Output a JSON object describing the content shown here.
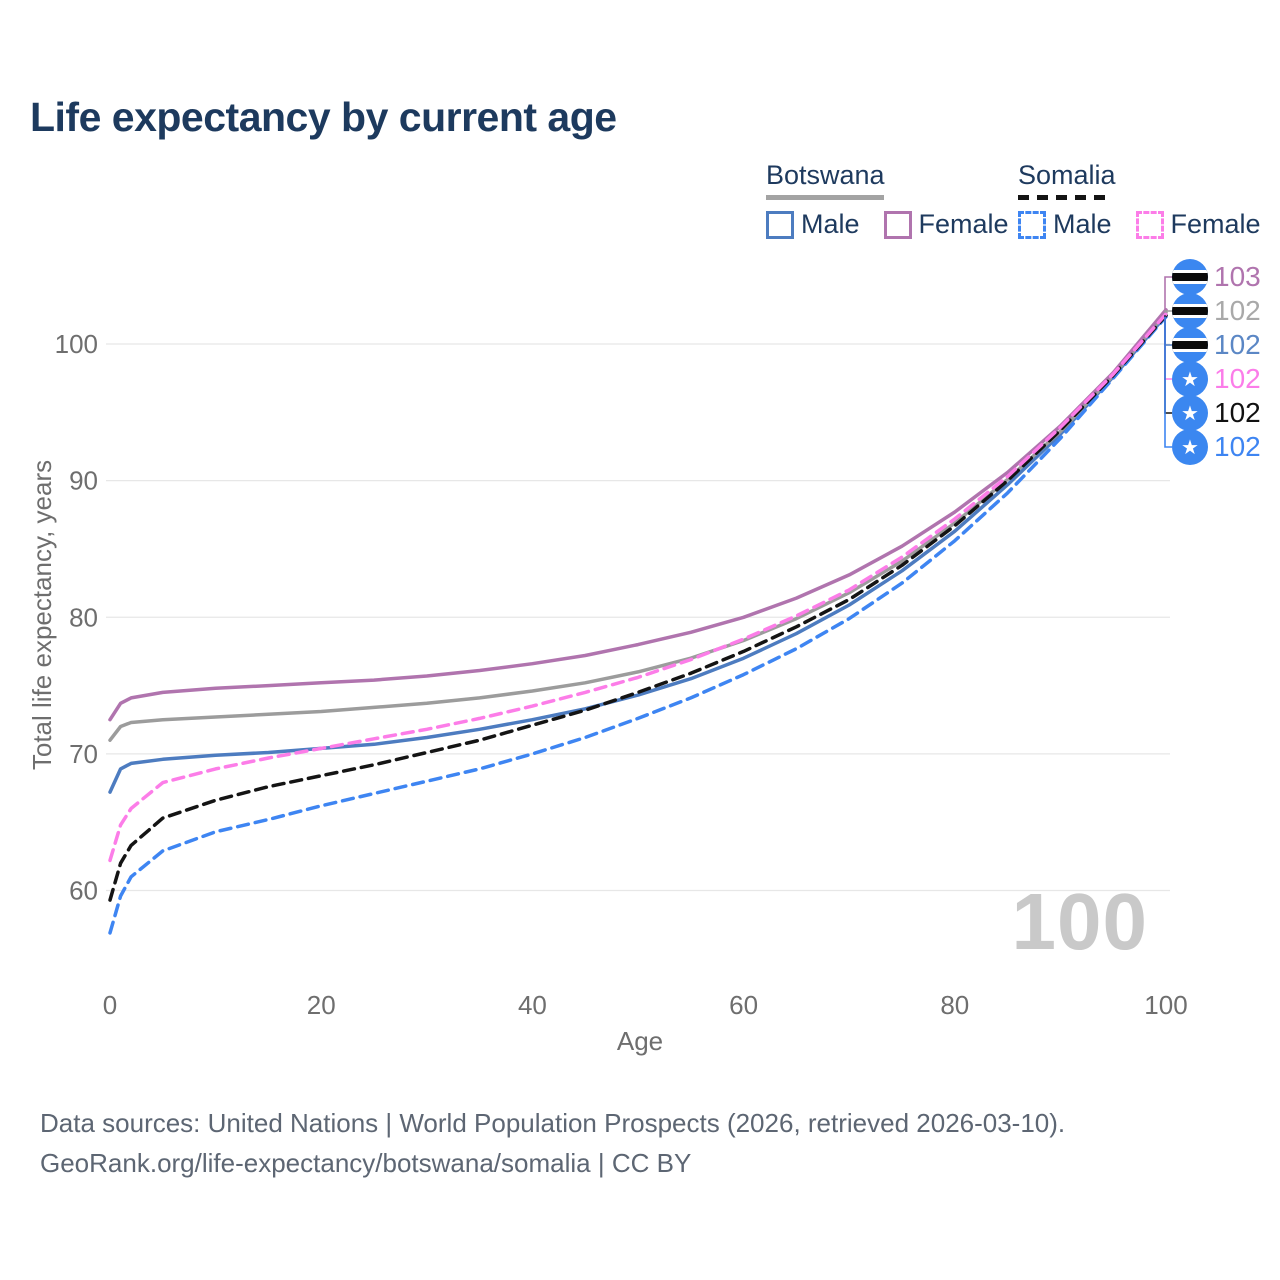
{
  "header": {
    "title": "Life expectancy by current age"
  },
  "legend": {
    "groups": [
      {
        "country": "Botswana",
        "line_style": "solid",
        "line_color": "#a3a3a3",
        "items": [
          {
            "label": "Male",
            "color": "#4d7cc0"
          },
          {
            "label": "Female",
            "color": "#b074ae"
          }
        ]
      },
      {
        "country": "Somalia",
        "line_style": "dashed",
        "line_color": "#141414",
        "items": [
          {
            "label": "Male",
            "color": "#3e85f2"
          },
          {
            "label": "Female",
            "color": "#fc7de8"
          }
        ]
      }
    ]
  },
  "axes": {
    "x_label": "Age",
    "y_label": "Total life expectancy, years",
    "x_ticks": [
      0,
      20,
      40,
      60,
      80,
      100
    ],
    "y_ticks": [
      100,
      90,
      80,
      70,
      60
    ]
  },
  "chart_data": {
    "type": "line",
    "title": "Life expectancy by current age",
    "xlabel": "Age",
    "ylabel": "Total life expectancy, years",
    "xlim": [
      0,
      100
    ],
    "ylim": [
      56,
      104
    ],
    "grid": "horizontal",
    "legend_position": "top-right",
    "x": [
      0,
      1,
      2,
      5,
      10,
      15,
      20,
      25,
      30,
      35,
      40,
      45,
      50,
      55,
      60,
      65,
      70,
      75,
      80,
      85,
      90,
      95,
      100
    ],
    "series": [
      {
        "name": "Botswana Female",
        "country": "Botswana",
        "sex": "Female",
        "style": "solid",
        "color": "#b074ae",
        "end_label": "103",
        "values": [
          72.5,
          73.7,
          74.1,
          74.5,
          74.8,
          75.0,
          75.2,
          75.4,
          75.7,
          76.1,
          76.6,
          77.2,
          78.0,
          78.9,
          80.0,
          81.4,
          83.1,
          85.2,
          87.7,
          90.6,
          94.0,
          97.9,
          102.5
        ]
      },
      {
        "name": "Botswana Total",
        "country": "Botswana",
        "sex": "Total",
        "style": "solid",
        "color": "#9c9c9c",
        "end_label": "102",
        "values": [
          71.0,
          72.0,
          72.3,
          72.5,
          72.7,
          72.9,
          73.1,
          73.4,
          73.7,
          74.1,
          74.6,
          75.2,
          76.0,
          77.0,
          78.3,
          79.9,
          81.8,
          84.1,
          86.9,
          90.1,
          93.6,
          97.7,
          102.3
        ]
      },
      {
        "name": "Botswana Male",
        "country": "Botswana",
        "sex": "Male",
        "style": "solid",
        "color": "#4d7cc0",
        "end_label": "102",
        "values": [
          67.2,
          68.9,
          69.3,
          69.6,
          69.9,
          70.1,
          70.4,
          70.7,
          71.2,
          71.8,
          72.5,
          73.3,
          74.3,
          75.5,
          77.0,
          78.8,
          80.9,
          83.4,
          86.3,
          89.7,
          93.4,
          97.6,
          102.1
        ]
      },
      {
        "name": "Somalia Female",
        "country": "Somalia",
        "sex": "Female",
        "style": "dashed",
        "color": "#fc7de8",
        "end_label": "102",
        "values": [
          62.2,
          64.8,
          66.0,
          67.9,
          68.9,
          69.7,
          70.4,
          71.1,
          71.8,
          72.6,
          73.5,
          74.5,
          75.6,
          76.9,
          78.4,
          80.1,
          82.0,
          84.4,
          87.2,
          90.3,
          93.9,
          97.8,
          102.2
        ]
      },
      {
        "name": "Somalia Total",
        "country": "Somalia",
        "sex": "Total",
        "style": "dashed",
        "color": "#141414",
        "end_label": "102",
        "values": [
          59.3,
          62.0,
          63.3,
          65.3,
          66.6,
          67.6,
          68.4,
          69.2,
          70.1,
          71.0,
          72.1,
          73.2,
          74.5,
          75.9,
          77.5,
          79.3,
          81.3,
          83.8,
          86.7,
          90.0,
          93.7,
          97.7,
          102.1
        ]
      },
      {
        "name": "Somalia Male",
        "country": "Somalia",
        "sex": "Male",
        "style": "dashed",
        "color": "#3e85f2",
        "end_label": "102",
        "values": [
          56.9,
          59.6,
          61.0,
          62.9,
          64.3,
          65.2,
          66.2,
          67.1,
          68.0,
          68.9,
          70.0,
          71.2,
          72.6,
          74.1,
          75.8,
          77.7,
          79.9,
          82.5,
          85.6,
          89.1,
          93.1,
          97.5,
          102.0
        ]
      }
    ]
  },
  "annotations": {
    "hover_age_label": "100",
    "right_labels": [
      {
        "value": "103",
        "series": 0,
        "flag": "botswana",
        "label_color": "#b074ae"
      },
      {
        "value": "102",
        "series": 1,
        "flag": "botswana",
        "label_color": "#a9a9a9"
      },
      {
        "value": "102",
        "series": 2,
        "flag": "botswana",
        "label_color": "#5b87c5"
      },
      {
        "value": "102",
        "series": 3,
        "flag": "somalia",
        "label_color": "#fb7de9"
      },
      {
        "value": "102",
        "series": 4,
        "flag": "somalia",
        "label_color": "#111111"
      },
      {
        "value": "102",
        "series": 5,
        "flag": "somalia",
        "label_color": "#3e85f2"
      }
    ]
  },
  "footer": {
    "line1": "Data sources: United Nations | World Population Prospects (2026, retrieved 2026-03-10).",
    "line2": "GeoRank.org/life-expectancy/botswana/somalia | CC BY"
  }
}
